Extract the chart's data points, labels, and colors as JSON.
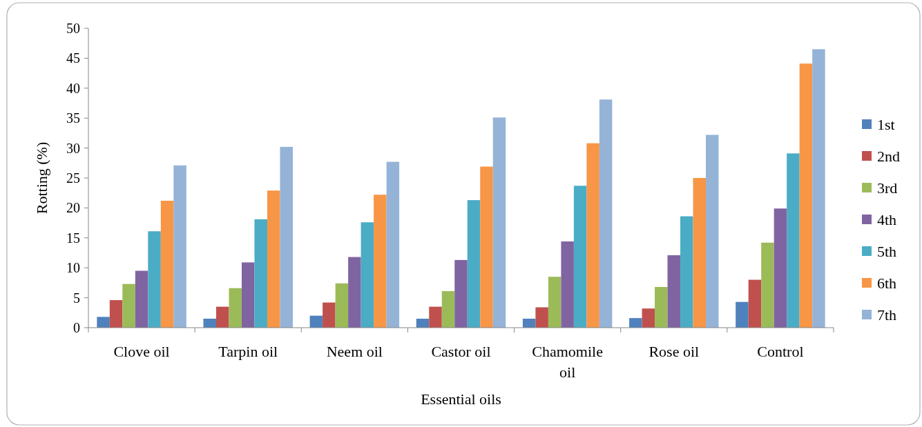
{
  "chart_data": {
    "type": "bar",
    "xlabel": "Essential oils",
    "ylabel": "Rotting (%)",
    "categories": [
      "Clove oil",
      "Tarpin oil",
      "Neem oil",
      "Castor oil",
      "Chamomile oil",
      "Rose oil",
      "Control"
    ],
    "series": [
      {
        "name": "1st",
        "color": "#4f81bd",
        "values": [
          1.8,
          1.5,
          2.0,
          1.5,
          1.5,
          1.6,
          4.3
        ]
      },
      {
        "name": "2nd",
        "color": "#c0504d",
        "values": [
          4.6,
          3.5,
          4.2,
          3.5,
          3.4,
          3.2,
          8.0
        ]
      },
      {
        "name": "3rd",
        "color": "#9bbb59",
        "values": [
          7.3,
          6.6,
          7.4,
          6.1,
          8.5,
          6.8,
          14.2
        ]
      },
      {
        "name": "4th",
        "color": "#8064a2",
        "values": [
          9.5,
          10.9,
          11.8,
          11.3,
          14.4,
          12.1,
          19.9
        ]
      },
      {
        "name": "5th",
        "color": "#4bacc6",
        "values": [
          16.1,
          18.1,
          17.6,
          21.3,
          23.7,
          18.6,
          29.1
        ]
      },
      {
        "name": "6th",
        "color": "#f79646",
        "values": [
          21.2,
          22.9,
          22.2,
          26.9,
          30.8,
          25.0,
          44.1
        ]
      },
      {
        "name": "7th",
        "color": "#95b3d7",
        "values": [
          27.1,
          30.2,
          27.7,
          35.1,
          38.1,
          32.2,
          46.5
        ]
      }
    ],
    "ylim": [
      0,
      50
    ],
    "yticks": [
      0,
      5,
      10,
      15,
      20,
      25,
      30,
      35,
      40,
      45,
      50
    ],
    "grid": false,
    "legend": "right"
  }
}
